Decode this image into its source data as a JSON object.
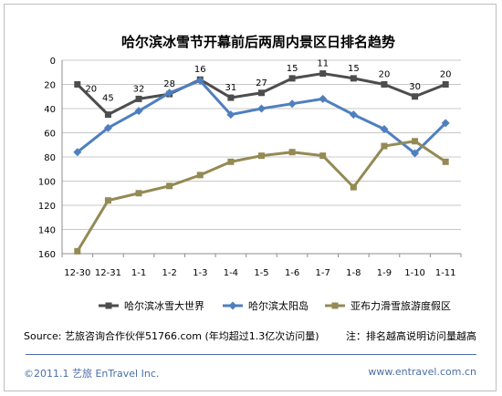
{
  "chart_data": {
    "type": "line",
    "title": "哈尔滨冰雪节开幕前后两周内景区日排名趋势",
    "categories": [
      "12-30",
      "12-31",
      "1-1",
      "1-2",
      "1-3",
      "1-4",
      "1-5",
      "1-6",
      "1-7",
      "1-8",
      "1-9",
      "1-10",
      "1-11"
    ],
    "ylim": [
      0,
      160
    ],
    "y_reversed": true,
    "yticks": [
      0,
      20,
      40,
      60,
      80,
      100,
      120,
      140,
      160
    ],
    "grid": true,
    "legend_position": "bottom",
    "series": [
      {
        "name": "哈尔滨冰雪大世界",
        "color": "#4d4d4d",
        "marker": "square",
        "values": [
          20,
          45,
          32,
          28,
          16,
          31,
          27,
          15,
          11,
          15,
          20,
          30,
          20
        ],
        "show_labels": true
      },
      {
        "name": "哈尔滨太阳岛",
        "color": "#4f7fbf",
        "marker": "diamond",
        "values": [
          76,
          56,
          42,
          27,
          17,
          45,
          40,
          36,
          32,
          45,
          57,
          77,
          52
        ],
        "show_labels": false
      },
      {
        "name": "亚布力滑雪旅游度假区",
        "color": "#948a54",
        "marker": "square",
        "values": [
          158,
          116,
          110,
          104,
          95,
          84,
          79,
          76,
          79,
          105,
          71,
          67,
          84
        ],
        "show_labels": false
      }
    ]
  },
  "footer": {
    "source": "Source: 艺旅咨询合作伙伴51766.com (年均超过1.3亿次访问量)",
    "note": "注：排名越高说明访问量越高",
    "copyright": "©2011.1  艺旅 EnTravel  Inc.",
    "website": "www.entravel.com.cn"
  }
}
